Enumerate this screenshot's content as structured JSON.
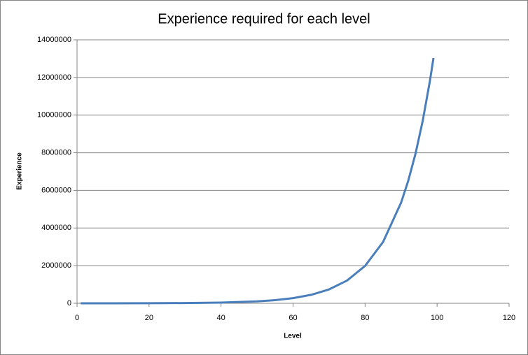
{
  "chart_data": {
    "type": "line",
    "title": "Experience required for each level",
    "x_label": "Level",
    "y_label": "Experience",
    "x": [
      1,
      10,
      20,
      30,
      40,
      50,
      55,
      60,
      65,
      70,
      75,
      80,
      85,
      90,
      92,
      94,
      96,
      98,
      99
    ],
    "values": [
      0,
      1154,
      4470,
      13363,
      37224,
      101333,
      166636,
      273742,
      449428,
      737627,
      1210421,
      1986068,
      3258594,
      5346332,
      6517253,
      7944614,
      9684577,
      11805606,
      13034431
    ],
    "color": "#4a7ebb",
    "xlim": [
      0,
      120
    ],
    "xticks": [
      0,
      20,
      40,
      60,
      80,
      100,
      120
    ],
    "ylim": [
      0,
      14000000
    ],
    "yticks": [
      0,
      2000000,
      4000000,
      6000000,
      8000000,
      10000000,
      12000000,
      14000000
    ],
    "grid": true
  }
}
